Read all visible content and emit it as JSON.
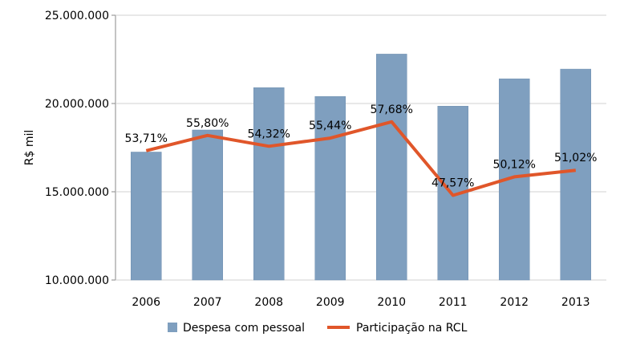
{
  "chart_data": {
    "type": "bar",
    "categories": [
      "2006",
      "2007",
      "2008",
      "2009",
      "2010",
      "2011",
      "2012",
      "2013"
    ],
    "ylabel": "R$ mil",
    "ylim": [
      10000000,
      25000000
    ],
    "yticks": [
      "10.000.000",
      "15.000.000",
      "20.000.000",
      "25.000.000"
    ],
    "ytick_values": [
      10000000,
      15000000,
      20000000,
      25000000
    ],
    "grid": true,
    "legend_position": "bottom",
    "series": [
      {
        "name": "Despesa com pessoal",
        "kind": "bar",
        "color": "#7f9fbf",
        "values": [
          17250000,
          18500000,
          20900000,
          20400000,
          22800000,
          19850000,
          21400000,
          21950000
        ]
      },
      {
        "name": "Participação na RCL",
        "kind": "line",
        "color": "#e0562a",
        "values": [
          53.71,
          55.8,
          54.32,
          55.44,
          57.68,
          47.57,
          50.12,
          51.02
        ],
        "labels": [
          "53,71%",
          "55,80%",
          "54,32%",
          "55,44%",
          "57,68%",
          "47,57%",
          "50,12%",
          "51,02%"
        ]
      }
    ]
  }
}
